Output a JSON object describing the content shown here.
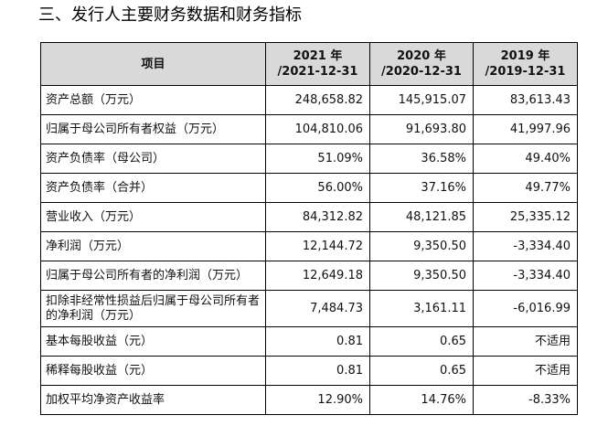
{
  "heading": "三、发行人主要财务数据和财务指标",
  "table": {
    "headers": {
      "item": "项目",
      "periods": [
        {
          "year": "2021 年",
          "date": "/2021-12-31"
        },
        {
          "year": "2020 年",
          "date": "/2020-12-31"
        },
        {
          "year": "2019 年",
          "date": "/2019-12-31"
        }
      ]
    },
    "rows": [
      {
        "label": "资产总额（万元）",
        "values": [
          "248,658.82",
          "145,915.07",
          "83,613.43"
        ]
      },
      {
        "label": "归属于母公司所有者权益（万元）",
        "values": [
          "104,810.06",
          "91,693.80",
          "41,997.96"
        ]
      },
      {
        "label": "资产负债率（母公司）",
        "values": [
          "51.09%",
          "36.58%",
          "49.40%"
        ]
      },
      {
        "label": "资产负债率（合并）",
        "values": [
          "56.00%",
          "37.16%",
          "49.77%"
        ]
      },
      {
        "label": "营业收入（万元）",
        "values": [
          "84,312.82",
          "48,121.85",
          "25,335.12"
        ]
      },
      {
        "label": "净利润（万元）",
        "values": [
          "12,144.72",
          "9,350.50",
          "-3,334.40"
        ]
      },
      {
        "label": "归属于母公司所有者的净利润（万元）",
        "values": [
          "12,649.18",
          "9,350.50",
          "-3,334.40"
        ]
      },
      {
        "label": "扣除非经常性损益后归属于母公司所有者的净利润（万元）",
        "values": [
          "7,484.73",
          "3,161.11",
          "-6,016.99"
        ]
      },
      {
        "label": "基本每股收益（元）",
        "values": [
          "0.81",
          "0.65",
          "不适用"
        ]
      },
      {
        "label": "稀释每股收益（元）",
        "values": [
          "0.81",
          "0.65",
          "不适用"
        ]
      },
      {
        "label": "加权平均净资产收益率",
        "values": [
          "12.90%",
          "14.76%",
          "-8.33%"
        ]
      }
    ]
  }
}
